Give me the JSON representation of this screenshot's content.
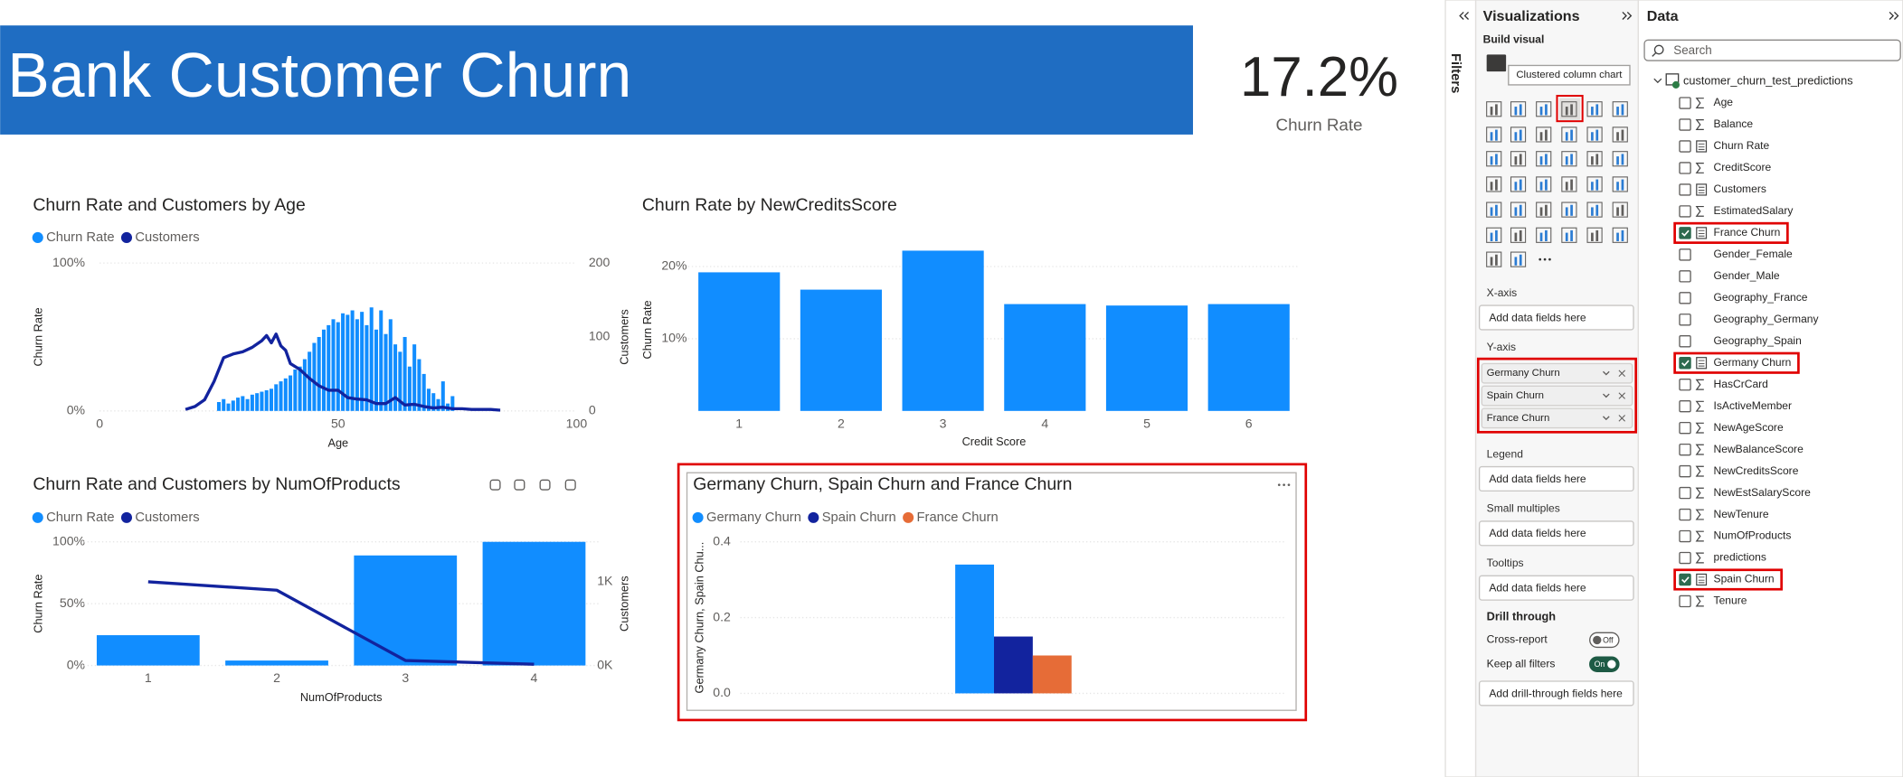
{
  "report": {
    "title": "Bank Customer Churn",
    "kpi": {
      "value": "17.2%",
      "label": "Churn Rate"
    }
  },
  "chart_data": [
    {
      "type": "combo",
      "title": "Churn Rate and Customers by Age",
      "x_label": "Age",
      "y_label": "Churn Rate",
      "y2_label": "Customers",
      "xlim": [
        0,
        100
      ],
      "xticks": [
        0,
        50,
        100
      ],
      "ylim": [
        0,
        100
      ],
      "yticks": [
        {
          "value": 0,
          "label": "0%"
        },
        {
          "value": 100,
          "label": "100%"
        }
      ],
      "y2lim": [
        0,
        200
      ],
      "y2ticks": [
        0,
        100,
        200
      ],
      "grid": true,
      "series": [
        {
          "name": "Churn Rate",
          "color": "#118DFF",
          "kind": "bar",
          "x": [
            25,
            26,
            27,
            28,
            29,
            30,
            31,
            32,
            33,
            34,
            35,
            36,
            37,
            38,
            39,
            40,
            41,
            42,
            43,
            44,
            45,
            46,
            47,
            48,
            49,
            50,
            51,
            52,
            53,
            54,
            55,
            56,
            57,
            58,
            59,
            60,
            61,
            62,
            63,
            64,
            65,
            66,
            67,
            68,
            69,
            70,
            71,
            72,
            73,
            74
          ],
          "values": [
            6,
            8,
            5,
            7,
            9,
            10,
            8,
            11,
            12,
            13,
            14,
            15,
            18,
            20,
            22,
            24,
            28,
            30,
            35,
            40,
            46,
            50,
            55,
            58,
            62,
            60,
            66,
            65,
            68,
            62,
            67,
            58,
            70,
            55,
            68,
            52,
            62,
            45,
            40,
            50,
            30,
            45,
            35,
            25,
            15,
            12,
            8,
            20,
            5,
            10
          ]
        },
        {
          "name": "Customers",
          "color": "#12239E",
          "kind": "line",
          "axis": "y2",
          "x": [
            18,
            20,
            22,
            24,
            26,
            28,
            30,
            32,
            34,
            35,
            36,
            37,
            38,
            39,
            40,
            42,
            44,
            46,
            48,
            50,
            52,
            54,
            56,
            58,
            60,
            62,
            64,
            66,
            68,
            70,
            72,
            74,
            76,
            78,
            80,
            82,
            84
          ],
          "values": [
            2,
            6,
            15,
            40,
            72,
            77,
            80,
            86,
            95,
            102,
            92,
            104,
            88,
            82,
            64,
            56,
            44,
            34,
            28,
            28,
            18,
            16,
            15,
            10,
            10,
            18,
            8,
            9,
            6,
            4,
            5,
            3,
            3,
            2,
            2,
            2,
            1
          ]
        }
      ]
    },
    {
      "type": "bar",
      "title": "Churn Rate by NewCreditsScore",
      "x_label": "Credit Score",
      "y_label": "Churn Rate",
      "categories": [
        "1",
        "2",
        "3",
        "4",
        "5",
        "6"
      ],
      "values": [
        19.2,
        16.8,
        22.2,
        14.8,
        14.6,
        14.8
      ],
      "color": "#118DFF",
      "ylim": [
        0,
        22.5
      ],
      "yticks": [
        {
          "value": 10,
          "label": "10%"
        },
        {
          "value": 20,
          "label": "20%"
        }
      ],
      "grid": true
    },
    {
      "type": "combo",
      "title": "Churn Rate and Customers by NumOfProducts",
      "x_label": "NumOfProducts",
      "y_label": "Churn Rate",
      "y2_label": "Customers",
      "categories": [
        "1",
        "2",
        "3",
        "4"
      ],
      "ylim": [
        0,
        100
      ],
      "yticks": [
        {
          "value": 0,
          "label": "0%"
        },
        {
          "value": 50,
          "label": "50%"
        },
        {
          "value": 100,
          "label": "100%"
        }
      ],
      "y2lim": [
        0,
        1478
      ],
      "y2ticks": [
        {
          "value": 0,
          "label": "0K"
        },
        {
          "value": 1000,
          "label": "1K"
        }
      ],
      "grid": true,
      "series": [
        {
          "name": "Churn Rate",
          "color": "#118DFF",
          "kind": "bar",
          "values": [
            24.5,
            4,
            89,
            100
          ]
        },
        {
          "name": "Customers",
          "color": "#12239E",
          "kind": "line",
          "axis": "y2",
          "values": [
            1000,
            900,
            60,
            15
          ]
        }
      ]
    },
    {
      "type": "bar",
      "title": "Germany Churn, Spain Churn and France Churn",
      "y_label": "Germany Churn, Spain Chu...",
      "categories": [
        null
      ],
      "highlighted": true,
      "ylim": [
        0,
        0.4
      ],
      "yticks": [
        {
          "value": 0,
          "label": "0.0"
        },
        0.2,
        0.4
      ],
      "grid": true,
      "series": [
        {
          "name": "Germany Churn",
          "color": "#118DFF",
          "values": [
            0.34
          ]
        },
        {
          "name": "Spain Churn",
          "color": "#12239E",
          "values": [
            0.15
          ]
        },
        {
          "name": "France Churn",
          "color": "#E66C37",
          "values": [
            0.1
          ]
        }
      ]
    }
  ],
  "filters_pane": {
    "title": "Filters"
  },
  "visualizations_pane": {
    "title": "Visualizations",
    "subtitle": "Build visual",
    "tooltip": "Clustered column chart",
    "wells": [
      {
        "label": "X-axis",
        "placeholder": "Add data fields here"
      },
      {
        "label": "Y-axis",
        "fields": [
          "Germany Churn",
          "Spain Churn",
          "France Churn"
        ],
        "highlighted": true
      },
      {
        "label": "Legend",
        "placeholder": "Add data fields here"
      },
      {
        "label": "Small multiples",
        "placeholder": "Add data fields here"
      },
      {
        "label": "Tooltips",
        "placeholder": "Add data fields here"
      }
    ],
    "drill_through": {
      "title": "Drill through",
      "options": [
        {
          "label": "Cross-report",
          "state": "Off",
          "on": false
        },
        {
          "label": "Keep all filters",
          "state": "On",
          "on": true
        }
      ],
      "placeholder": "Add drill-through fields here"
    }
  },
  "data_pane": {
    "title": "Data",
    "search_placeholder": "Search",
    "table": "customer_churn_test_predictions",
    "fields": [
      {
        "name": "Age",
        "icon": "sum",
        "checked": false
      },
      {
        "name": "Balance",
        "icon": "sum",
        "checked": false
      },
      {
        "name": "Churn Rate",
        "icon": "calc",
        "checked": false
      },
      {
        "name": "CreditScore",
        "icon": "sum",
        "checked": false
      },
      {
        "name": "Customers",
        "icon": "calc",
        "checked": false
      },
      {
        "name": "EstimatedSalary",
        "icon": "sum",
        "checked": false
      },
      {
        "name": "France Churn",
        "icon": "calc",
        "checked": true
      },
      {
        "name": "Gender_Female",
        "icon": "none",
        "checked": false
      },
      {
        "name": "Gender_Male",
        "icon": "none",
        "checked": false
      },
      {
        "name": "Geography_France",
        "icon": "none",
        "checked": false
      },
      {
        "name": "Geography_Germany",
        "icon": "none",
        "checked": false
      },
      {
        "name": "Geography_Spain",
        "icon": "none",
        "checked": false
      },
      {
        "name": "Germany Churn",
        "icon": "calc",
        "checked": true
      },
      {
        "name": "HasCrCard",
        "icon": "sum",
        "checked": false
      },
      {
        "name": "IsActiveMember",
        "icon": "sum",
        "checked": false
      },
      {
        "name": "NewAgeScore",
        "icon": "sum",
        "checked": false
      },
      {
        "name": "NewBalanceScore",
        "icon": "sum",
        "checked": false
      },
      {
        "name": "NewCreditsScore",
        "icon": "sum",
        "checked": false
      },
      {
        "name": "NewEstSalaryScore",
        "icon": "sum",
        "checked": false
      },
      {
        "name": "NewTenure",
        "icon": "sum",
        "checked": false
      },
      {
        "name": "NumOfProducts",
        "icon": "sum",
        "checked": false
      },
      {
        "name": "predictions",
        "icon": "sum",
        "checked": false
      },
      {
        "name": "Spain Churn",
        "icon": "calc",
        "checked": true
      },
      {
        "name": "Tenure",
        "icon": "sum",
        "checked": false
      }
    ]
  }
}
